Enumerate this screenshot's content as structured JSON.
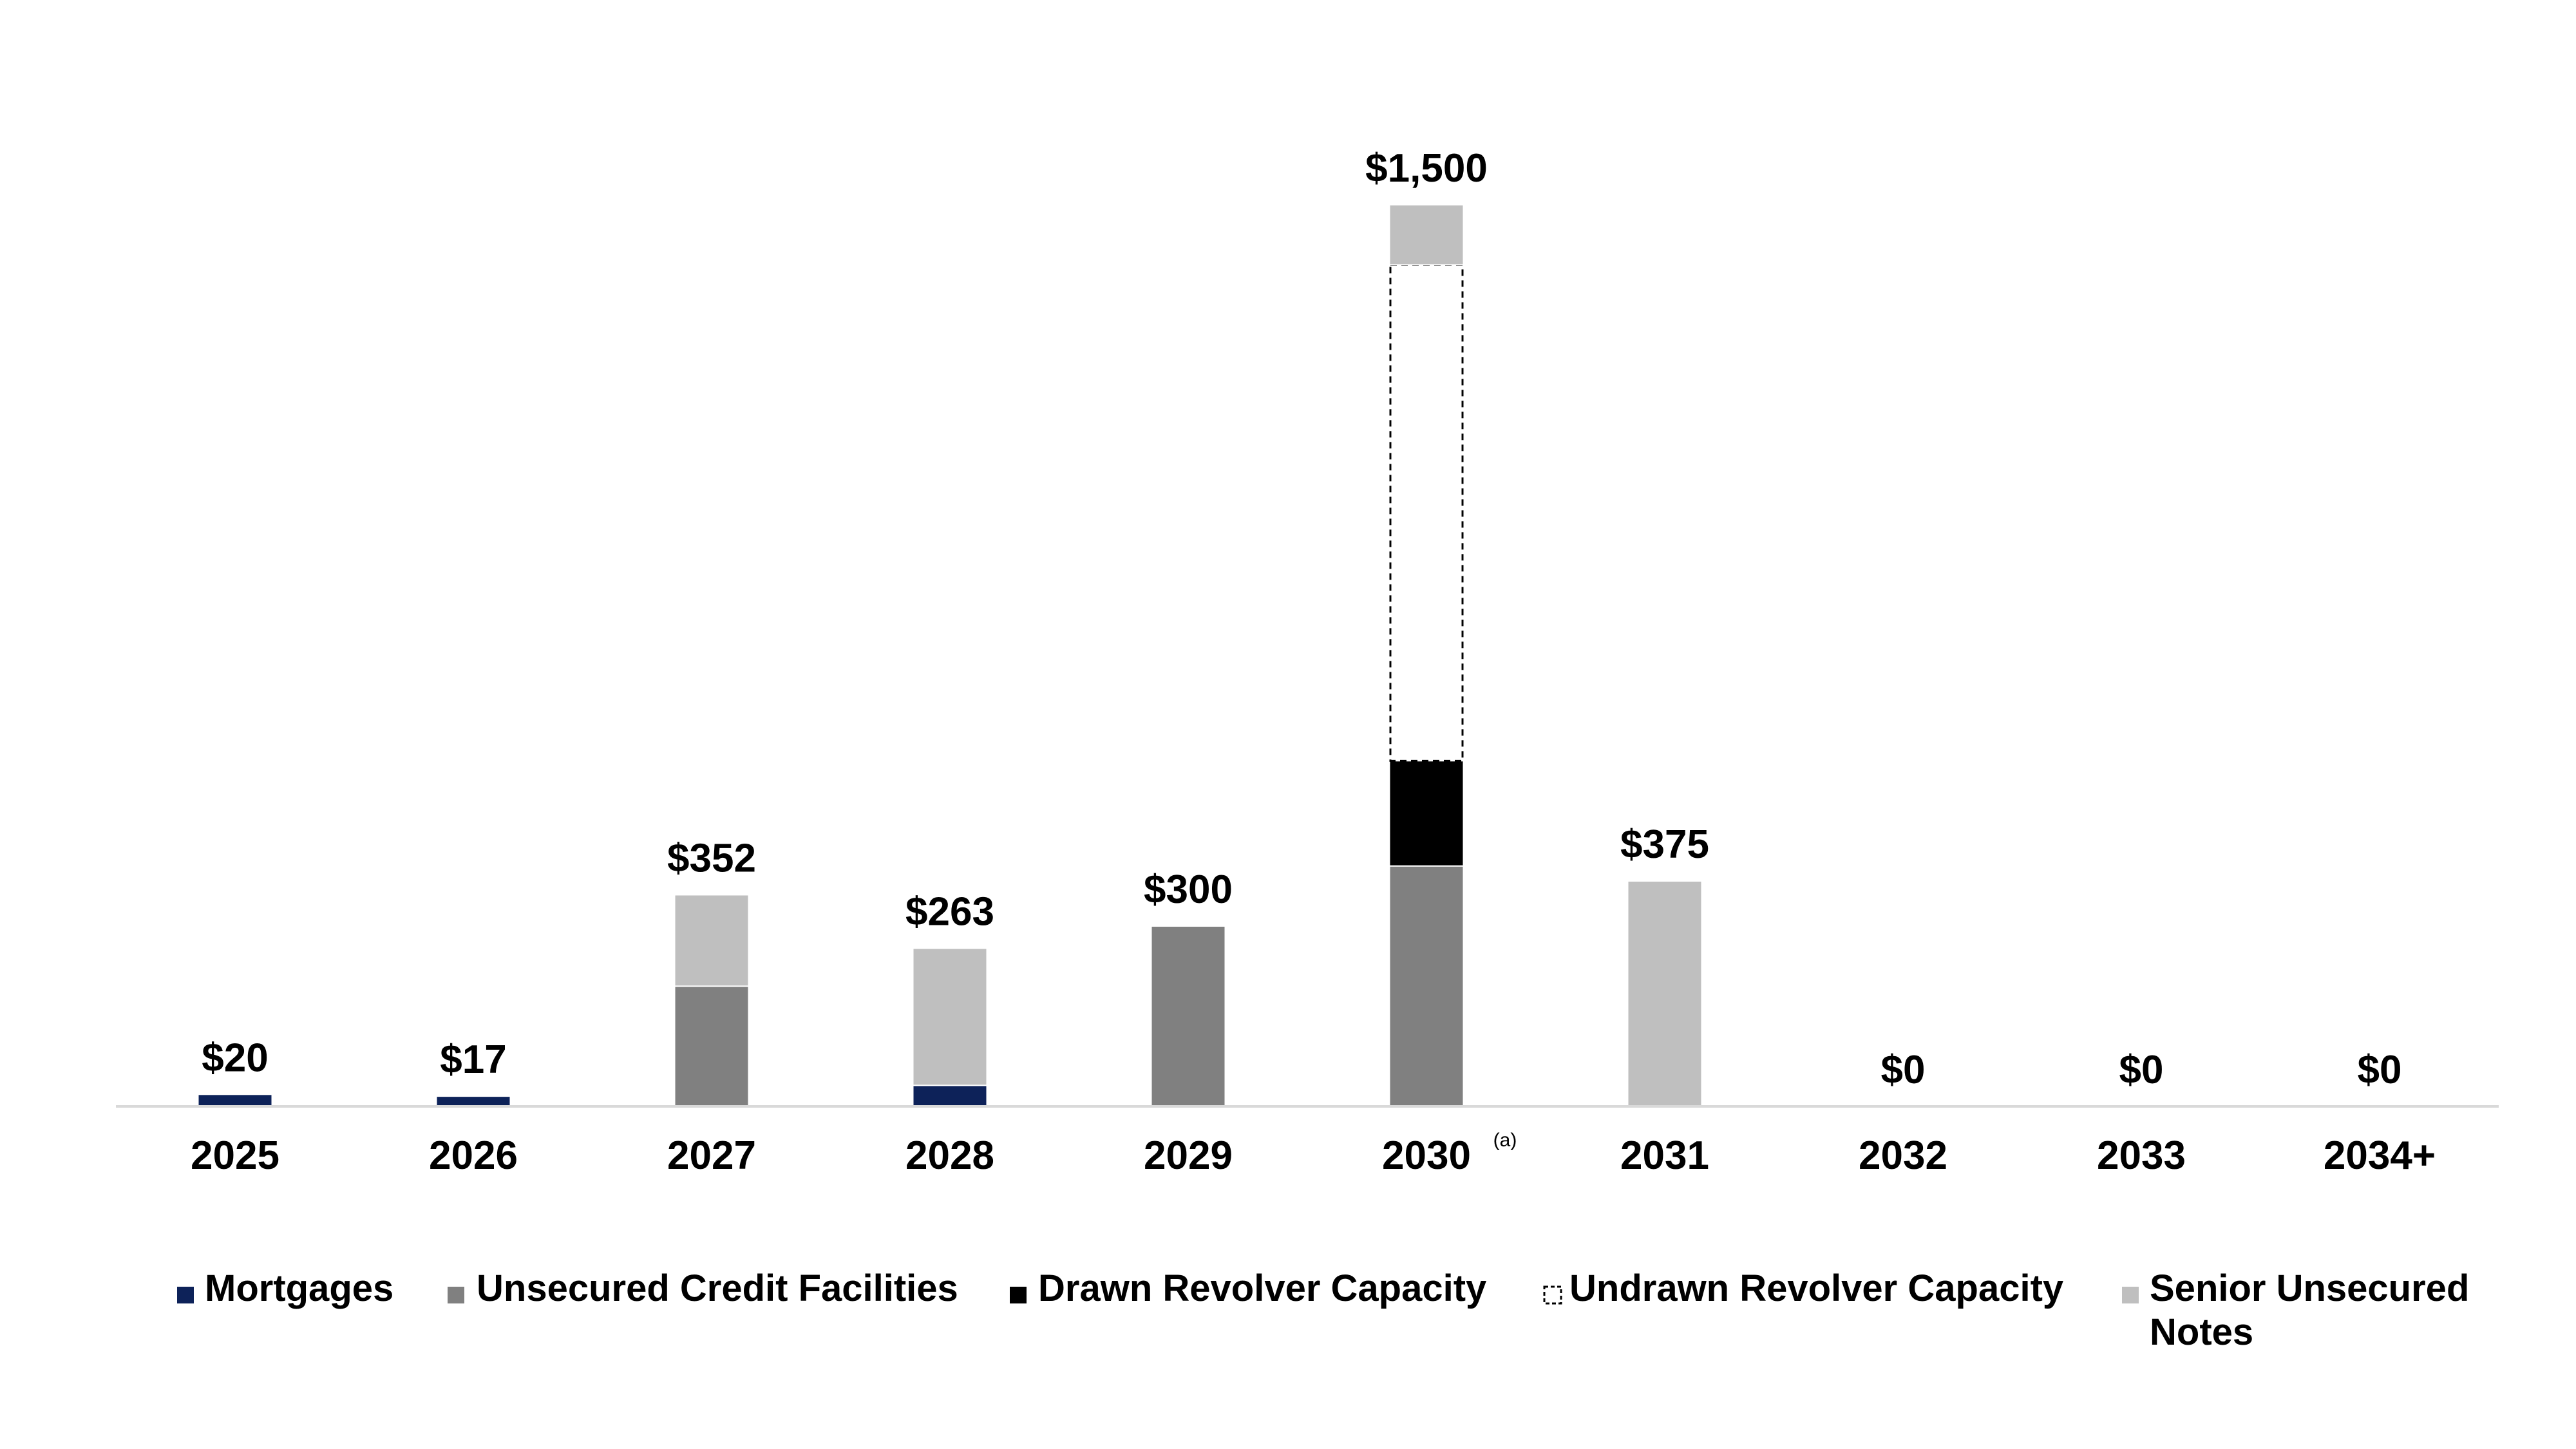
{
  "chart_data": {
    "type": "bar",
    "stacked": true,
    "categories": [
      "2025",
      "2026",
      "2027",
      "2028",
      "2029",
      "2030",
      "2031",
      "2032",
      "2033",
      "2034+"
    ],
    "category_footnotes": [
      "",
      "",
      "",
      "",
      "",
      "(a)",
      "",
      "",
      "",
      ""
    ],
    "totals": [
      "$20",
      "$17",
      "$352",
      "$263",
      "$300",
      "$1,500",
      "$375",
      "$0",
      "$0",
      "$0"
    ],
    "series": [
      {
        "name": "Mortgages",
        "color": "#0d2259",
        "style": "solid",
        "values": [
          20,
          17,
          0,
          35,
          0,
          0,
          0,
          0,
          0,
          0
        ]
      },
      {
        "name": "Unsecured Credit Facilities",
        "color": "#808080",
        "style": "solid",
        "values": [
          0,
          0,
          200,
          0,
          300,
          400,
          0,
          0,
          0,
          0
        ]
      },
      {
        "name": "Drawn Revolver Capacity",
        "color": "#000000",
        "style": "solid",
        "values": [
          0,
          0,
          0,
          0,
          0,
          175,
          0,
          0,
          0,
          0
        ]
      },
      {
        "name": "Undrawn Revolver Capacity",
        "color": "#ffffff",
        "style": "dashed",
        "values": [
          0,
          0,
          0,
          0,
          0,
          825,
          0,
          0,
          0,
          0
        ]
      },
      {
        "name": "Senior Unsecured Notes",
        "color": "#bfbfbf",
        "style": "solid",
        "values": [
          0,
          0,
          152,
          228,
          0,
          100,
          375,
          0,
          0,
          0
        ]
      }
    ],
    "ylim": [
      0,
      1500
    ],
    "grid": false,
    "legend": "bottom",
    "xlabel": "",
    "ylabel": ""
  }
}
